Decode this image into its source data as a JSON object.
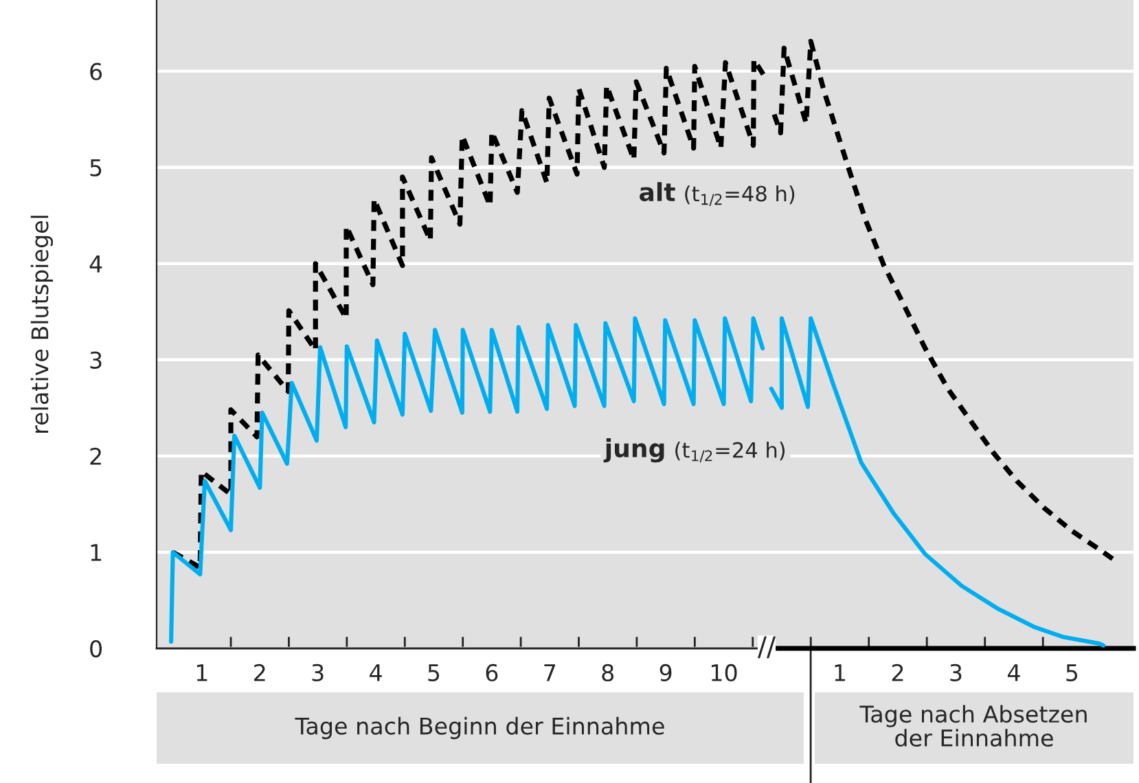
{
  "chart_data": [
    {
      "type": "line",
      "ylabel": "relative Blutspiegel",
      "xlabel": "Tage nach Beginn der Einnahme",
      "annotations": [
        {
          "text": "//",
          "x": 10.74,
          "y": 0
        }
      ],
      "xlim": [
        0.22,
        10.74
      ],
      "ylim": [
        0,
        6.74
      ],
      "xticks": [
        1,
        2,
        3,
        4,
        5,
        6,
        7,
        8,
        9,
        10,
        {
          "value": 1.5,
          "label": null
        },
        {
          "value": 2.5,
          "label": null
        },
        {
          "value": 3.5,
          "label": null
        },
        {
          "value": 4.5,
          "label": null
        },
        {
          "value": 5.5,
          "label": null
        },
        {
          "value": 6.5,
          "label": null
        },
        {
          "value": 7.5,
          "label": null
        },
        {
          "value": 8.5,
          "label": null
        },
        {
          "value": 9.5,
          "label": null
        },
        {
          "value": 10.5,
          "label": null
        }
      ],
      "yticks": [
        0,
        1,
        2,
        3,
        4,
        5,
        6
      ],
      "grid": "y",
      "legend": false,
      "marker": "none",
      "series": [
        {
          "name": "alt (t$_{1/2}$=48 h)",
          "color": "#000000",
          "line_style": "dashed",
          "x": [
            0.5,
            0.97,
            0.99,
            1.5,
            1.5,
            1.95,
            1.97,
            2.49,
            2.5,
            2.96,
            2.96,
            3.49,
            3.49,
            3.95,
            3.97,
            4.46,
            4.46,
            4.94,
            4.96,
            5.45,
            5.49,
            5.97,
            6.0,
            6.44,
            6.52,
            6.95,
            6.99,
            7.47,
            7.5,
            7.94,
            7.98,
            8.45,
            8.49,
            8.97,
            9.01,
            9.48,
            9.5,
            9.95,
            10.03,
            10.51,
            10.52,
            10.72
          ],
          "values": [
            1.0,
            0.84,
            1.84,
            1.6,
            2.48,
            2.2,
            3.05,
            2.67,
            3.51,
            3.1,
            4.0,
            3.43,
            4.39,
            3.78,
            4.67,
            3.98,
            4.9,
            4.24,
            5.1,
            4.41,
            5.33,
            4.6,
            5.37,
            4.74,
            5.59,
            4.84,
            5.72,
            4.93,
            5.82,
            5.0,
            5.85,
            5.08,
            5.89,
            5.15,
            6.03,
            5.2,
            6.05,
            5.2,
            6.09,
            5.23,
            6.12,
            5.93
          ]
        },
        {
          "name": "jung (t$_{1/2}$=24 h)",
          "color": "#00aeef",
          "line_style": "solid",
          "x": [
            0.47,
            0.5,
            0.97,
            1.05,
            1.5,
            1.56,
            2.0,
            2.04,
            2.47,
            2.55,
            2.98,
            3.04,
            3.48,
            3.5,
            3.97,
            4.02,
            4.46,
            4.5,
            4.95,
            5.02,
            5.49,
            5.5,
            5.97,
            6.0,
            6.44,
            6.46,
            6.95,
            6.97,
            7.43,
            7.45,
            7.94,
            7.96,
            8.45,
            8.47,
            8.97,
            8.99,
            9.48,
            9.5,
            10.0,
            10.02,
            10.47,
            10.51,
            10.67
          ],
          "values": [
            0.07,
            1.0,
            0.77,
            1.74,
            1.23,
            2.21,
            1.67,
            2.45,
            1.92,
            2.76,
            2.16,
            3.13,
            2.3,
            3.14,
            2.35,
            3.2,
            2.43,
            3.27,
            2.47,
            3.31,
            2.45,
            3.31,
            2.46,
            3.31,
            2.46,
            3.34,
            2.49,
            3.36,
            2.52,
            3.36,
            2.52,
            3.38,
            2.57,
            3.43,
            2.54,
            3.41,
            2.54,
            3.41,
            2.54,
            3.43,
            2.57,
            3.43,
            3.12
          ]
        }
      ]
    },
    {
      "type": "line",
      "xlabel": "Tage nach Absetzen\nder Einnahme",
      "xlim": [
        -0.26,
        6.06
      ],
      "ylim": [
        0,
        6.74
      ],
      "xticks": [
        1,
        2,
        3,
        4,
        5,
        {
          "value": 0.5,
          "label": null
        },
        {
          "value": 1.5,
          "label": null
        },
        {
          "value": 2.5,
          "label": null
        },
        {
          "value": 3.5,
          "label": null
        },
        {
          "value": 4.5,
          "label": null
        }
      ],
      "yticks": [
        0,
        1,
        2,
        3,
        4,
        5,
        6
      ],
      "tick_labels": "x",
      "grid": "y",
      "legend": false,
      "marker": "none",
      "series": [
        {
          "color": "#000000",
          "line_style": "dashed",
          "x": [
            -0.13,
            -0.02,
            0.04,
            0.42,
            0.5,
            0.73,
            1.13,
            1.44,
            1.76,
            2.08,
            2.47,
            2.86,
            3.26,
            3.65,
            4.05,
            4.52,
            5.0,
            5.47,
            5.7
          ],
          "values": [
            5.55,
            5.36,
            6.24,
            5.46,
            6.31,
            5.79,
            5.03,
            4.46,
            3.98,
            3.6,
            3.12,
            2.7,
            2.36,
            2.03,
            1.74,
            1.46,
            1.22,
            1.03,
            0.93
          ]
        },
        {
          "color": "#00aeef",
          "line_style": "solid",
          "x": [
            -0.18,
            0.0,
            0.0,
            0.45,
            0.5,
            0.89,
            1.37,
            1.92,
            2.47,
            3.1,
            3.73,
            4.36,
            4.84,
            5.47,
            5.54
          ],
          "values": [
            2.7,
            2.5,
            3.43,
            2.51,
            3.43,
            2.74,
            1.93,
            1.41,
            0.98,
            0.65,
            0.41,
            0.22,
            0.12,
            0.05,
            0.03
          ]
        }
      ]
    }
  ]
}
